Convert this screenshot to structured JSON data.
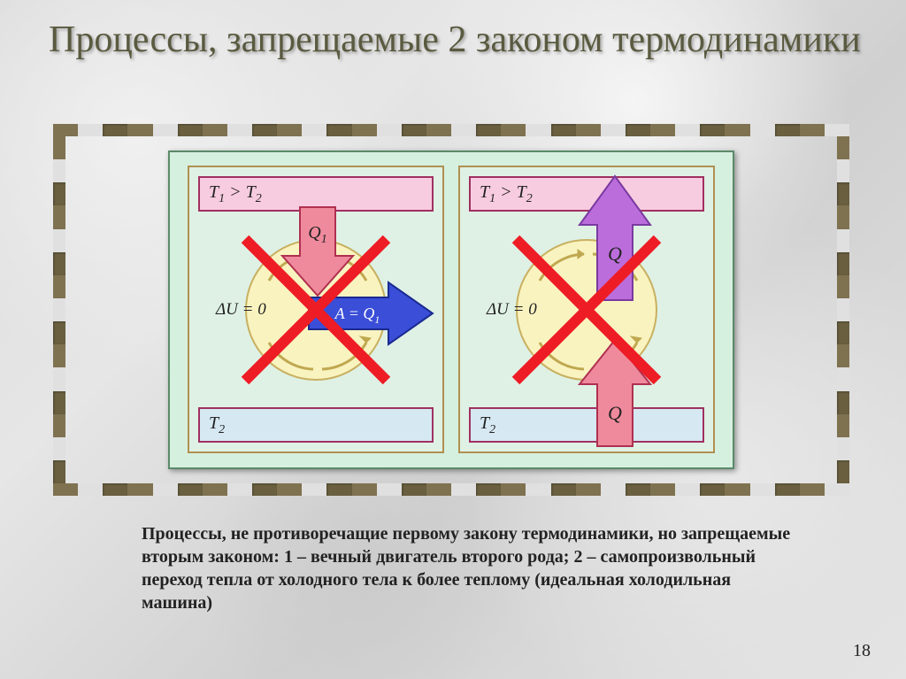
{
  "title": "Процессы, запрещаемые 2 законом термодинамики",
  "title_color": "#5a5a40",
  "title_fontsize": 42,
  "background": {
    "marble_base": "#dcdcdc",
    "marble_light": "#f0f0f0",
    "marble_dark": "#c8c8c8"
  },
  "frame": {
    "dash_colors": [
      "#7f7250",
      "#e0e0e0",
      "#6a6040"
    ],
    "dash_count_h": 32,
    "dash_count_v": 15
  },
  "diagram": {
    "bg_color": "#d6f0df",
    "border_color": "#5a8a6a",
    "panel_bg": "#dff1e5",
    "panel_border": "#b09050",
    "t_bar_top_bg": "#f8cce0",
    "t_bar_bottom_bg": "#d6e8f2",
    "t_bar_border": "#a03060",
    "circle_bg": "#f9f3c0",
    "circle_border": "#c8b060",
    "cycle_arrow_color": "#c0a850"
  },
  "labels": {
    "t_relation": "T₁ > T₂",
    "t2": "T₂",
    "du": "ΔU = 0",
    "q1": "Q₁",
    "q": "Q",
    "a_eq": "A = Q₁"
  },
  "arrows": {
    "q1_down": {
      "fill": "#ef8a9c",
      "stroke": "#b03050"
    },
    "a_right": {
      "fill": "#3a4ed8",
      "stroke": "#1a2a90"
    },
    "q_up_purple": {
      "fill": "#bb6edb",
      "stroke": "#7a3aa0"
    },
    "q_up_red": {
      "fill": "#ef8a9c",
      "stroke": "#b03050"
    },
    "x_color": "#ee1c25",
    "x_stroke_width": 12
  },
  "caption": "Процессы, не противоречащие первому закону термодинамики, но запрещаемые вторым законом: 1 – вечный двигатель второго рода; 2 – самопроизвольный переход тепла от холодного тела к более теплому (идеальная холодильная машина)",
  "slide_number": "18"
}
